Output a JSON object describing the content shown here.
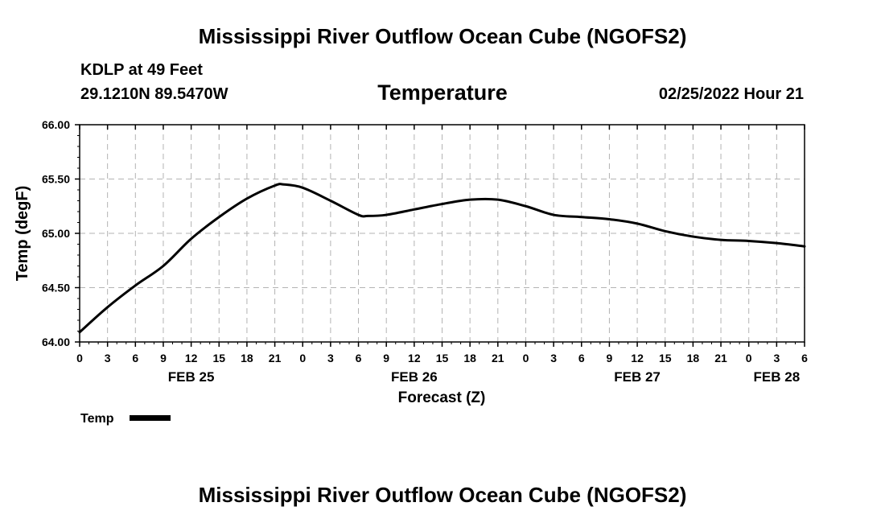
{
  "page": {
    "title_top": "Mississippi River Outflow Ocean Cube (NGOFS2)",
    "title_bottom": "Mississippi River Outflow Ocean Cube (NGOFS2)",
    "station": "KDLP at 49 Feet",
    "coords": "29.1210N  89.5470W",
    "variable": "Temperature",
    "datetime": "02/25/2022 Hour 21"
  },
  "chart_data": {
    "type": "line",
    "title": "Temperature",
    "xlabel": "Forecast (Z)",
    "ylabel": "Temp (degF)",
    "ylim": [
      64.0,
      66.0
    ],
    "xlim": [
      0,
      78
    ],
    "grid": true,
    "y_ticks": [
      "64.00",
      "64.50",
      "65.00",
      "65.50",
      "66.00"
    ],
    "y_tick_values": [
      64.0,
      64.5,
      65.0,
      65.5,
      66.0
    ],
    "x_tick_hours": [
      0,
      3,
      6,
      9,
      12,
      15,
      18,
      21,
      24,
      27,
      30,
      33,
      36,
      39,
      42,
      45,
      48,
      51,
      54,
      57,
      60,
      63,
      66,
      69,
      72,
      75,
      78
    ],
    "x_tick_labels": [
      "0",
      "3",
      "6",
      "9",
      "12",
      "15",
      "18",
      "21",
      "0",
      "3",
      "6",
      "9",
      "12",
      "15",
      "18",
      "21",
      "0",
      "3",
      "6",
      "9",
      "12",
      "15",
      "18",
      "21",
      "0",
      "3",
      "6"
    ],
    "date_labels": [
      {
        "label": "FEB 25",
        "hour": 12
      },
      {
        "label": "FEB 26",
        "hour": 36
      },
      {
        "label": "FEB 27",
        "hour": 60
      },
      {
        "label": "FEB 28",
        "hour": 75
      }
    ],
    "legend": {
      "label": "Temp",
      "placement": "bottom-left"
    },
    "series": [
      {
        "name": "Temp",
        "color": "#000000",
        "x": [
          0,
          3,
          6,
          9,
          12,
          15,
          18,
          21,
          22,
          24,
          27,
          30,
          31,
          33,
          36,
          39,
          42,
          45,
          48,
          51,
          54,
          57,
          60,
          63,
          66,
          69,
          72,
          75,
          78
        ],
        "values": [
          64.09,
          64.32,
          64.52,
          64.7,
          64.95,
          65.15,
          65.32,
          65.44,
          65.45,
          65.42,
          65.3,
          65.17,
          65.16,
          65.17,
          65.22,
          65.27,
          65.31,
          65.31,
          65.25,
          65.17,
          65.15,
          65.13,
          65.09,
          65.02,
          64.97,
          64.94,
          64.93,
          64.91,
          64.88
        ]
      }
    ]
  }
}
